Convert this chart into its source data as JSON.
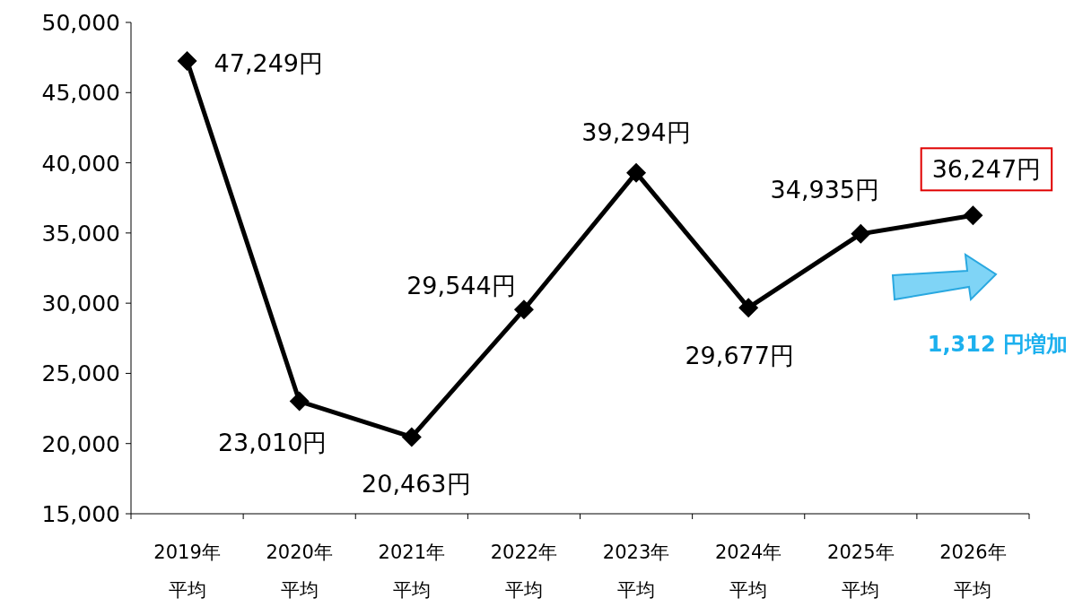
{
  "chart_data": {
    "type": "line",
    "categories": [
      "2019年平均",
      "2020年平均",
      "2021年平均",
      "2022年平均",
      "2023年平均",
      "2024年平均",
      "2025年平均",
      "2026年平均"
    ],
    "series": [
      {
        "color": "#000000",
        "values": [
          47249,
          23010,
          20463,
          29544,
          39294,
          29677,
          34935,
          36247
        ],
        "value_labels": [
          "47,249円",
          "23,010円",
          "20,463円",
          "29,544円",
          "39,294円",
          "29,677円",
          "34,935円",
          "36,247円"
        ]
      }
    ],
    "ylim": [
      15000,
      50000
    ],
    "yticks": [
      {
        "value": 15000,
        "label": "15,000"
      },
      {
        "value": 20000,
        "label": "20,000"
      },
      {
        "value": 25000,
        "label": "25,000"
      },
      {
        "value": 30000,
        "label": "30,000"
      },
      {
        "value": 35000,
        "label": "35,000"
      },
      {
        "value": 40000,
        "label": "40,000"
      },
      {
        "value": 45000,
        "label": "45,000"
      },
      {
        "value": 50000,
        "label": "50,000"
      }
    ],
    "marker": "diamond",
    "line_style": "solid",
    "grid": false,
    "annotations": [
      "1,312 円増加"
    ]
  }
}
